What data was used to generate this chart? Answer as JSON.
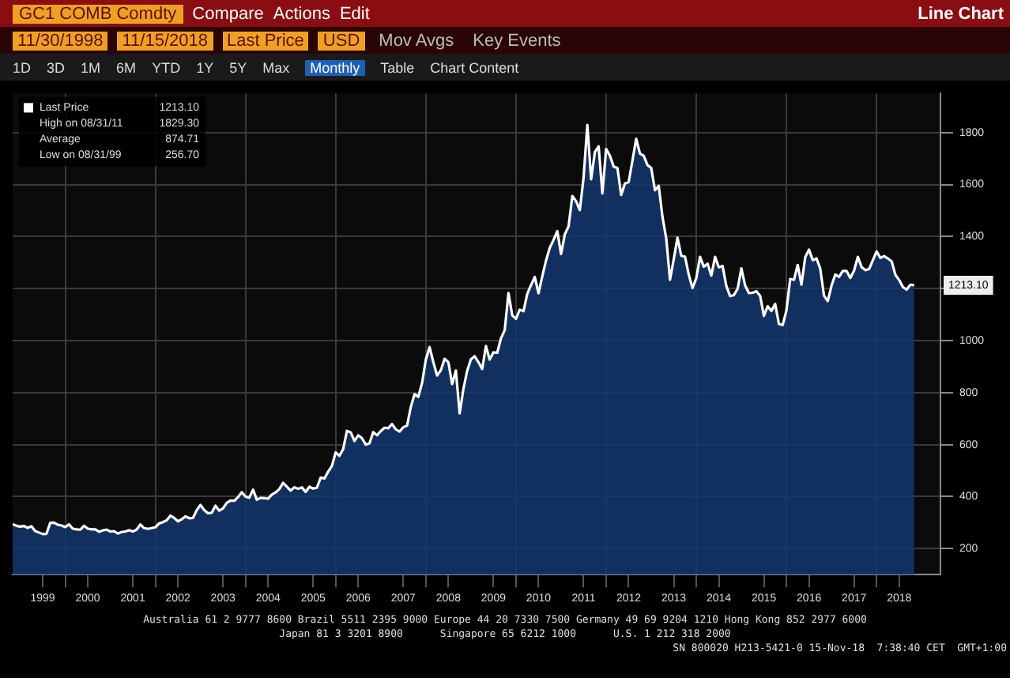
{
  "chart_data": {
    "type": "area",
    "title": "GC1 COMB Comdty",
    "subtitle": "Line Chart",
    "x": [
      "1998-11",
      "1998-12",
      "1999-01",
      "1999-02",
      "1999-03",
      "1999-04",
      "1999-05",
      "1999-06",
      "1999-07",
      "1999-08",
      "1999-09",
      "1999-10",
      "1999-11",
      "1999-12",
      "2000-01",
      "2000-02",
      "2000-03",
      "2000-04",
      "2000-05",
      "2000-06",
      "2000-07",
      "2000-08",
      "2000-09",
      "2000-10",
      "2000-11",
      "2000-12",
      "2001-01",
      "2001-02",
      "2001-03",
      "2001-04",
      "2001-05",
      "2001-06",
      "2001-07",
      "2001-08",
      "2001-09",
      "2001-10",
      "2001-11",
      "2001-12",
      "2002-01",
      "2002-02",
      "2002-03",
      "2002-04",
      "2002-05",
      "2002-06",
      "2002-07",
      "2002-08",
      "2002-09",
      "2002-10",
      "2002-11",
      "2002-12",
      "2003-01",
      "2003-02",
      "2003-03",
      "2003-04",
      "2003-05",
      "2003-06",
      "2003-07",
      "2003-08",
      "2003-09",
      "2003-10",
      "2003-11",
      "2003-12",
      "2004-01",
      "2004-02",
      "2004-03",
      "2004-04",
      "2004-05",
      "2004-06",
      "2004-07",
      "2004-08",
      "2004-09",
      "2004-10",
      "2004-11",
      "2004-12",
      "2005-01",
      "2005-02",
      "2005-03",
      "2005-04",
      "2005-05",
      "2005-06",
      "2005-07",
      "2005-08",
      "2005-09",
      "2005-10",
      "2005-11",
      "2005-12",
      "2006-01",
      "2006-02",
      "2006-03",
      "2006-04",
      "2006-05",
      "2006-06",
      "2006-07",
      "2006-08",
      "2006-09",
      "2006-10",
      "2006-11",
      "2006-12",
      "2007-01",
      "2007-02",
      "2007-03",
      "2007-04",
      "2007-05",
      "2007-06",
      "2007-07",
      "2007-08",
      "2007-09",
      "2007-10",
      "2007-11",
      "2007-12",
      "2008-01",
      "2008-02",
      "2008-03",
      "2008-04",
      "2008-05",
      "2008-06",
      "2008-07",
      "2008-08",
      "2008-09",
      "2008-10",
      "2008-11",
      "2008-12",
      "2009-01",
      "2009-02",
      "2009-03",
      "2009-04",
      "2009-05",
      "2009-06",
      "2009-07",
      "2009-08",
      "2009-09",
      "2009-10",
      "2009-11",
      "2009-12",
      "2010-01",
      "2010-02",
      "2010-03",
      "2010-04",
      "2010-05",
      "2010-06",
      "2010-07",
      "2010-08",
      "2010-09",
      "2010-10",
      "2010-11",
      "2010-12",
      "2011-01",
      "2011-02",
      "2011-03",
      "2011-04",
      "2011-05",
      "2011-06",
      "2011-07",
      "2011-08",
      "2011-09",
      "2011-10",
      "2011-11",
      "2011-12",
      "2012-01",
      "2012-02",
      "2012-03",
      "2012-04",
      "2012-05",
      "2012-06",
      "2012-07",
      "2012-08",
      "2012-09",
      "2012-10",
      "2012-11",
      "2012-12",
      "2013-01",
      "2013-02",
      "2013-03",
      "2013-04",
      "2013-05",
      "2013-06",
      "2013-07",
      "2013-08",
      "2013-09",
      "2013-10",
      "2013-11",
      "2013-12",
      "2014-01",
      "2014-02",
      "2014-03",
      "2014-04",
      "2014-05",
      "2014-06",
      "2014-07",
      "2014-08",
      "2014-09",
      "2014-10",
      "2014-11",
      "2014-12",
      "2015-01",
      "2015-02",
      "2015-03",
      "2015-04",
      "2015-05",
      "2015-06",
      "2015-07",
      "2015-08",
      "2015-09",
      "2015-10",
      "2015-11",
      "2015-12",
      "2016-01",
      "2016-02",
      "2016-03",
      "2016-04",
      "2016-05",
      "2016-06",
      "2016-07",
      "2016-08",
      "2016-09",
      "2016-10",
      "2016-11",
      "2016-12",
      "2017-01",
      "2017-02",
      "2017-03",
      "2017-04",
      "2017-05",
      "2017-06",
      "2017-07",
      "2017-08",
      "2017-09",
      "2017-10",
      "2017-11",
      "2017-12",
      "2018-01",
      "2018-02",
      "2018-03",
      "2018-04",
      "2018-05",
      "2018-06",
      "2018-07",
      "2018-08",
      "2018-09",
      "2018-10",
      "2018-11"
    ],
    "series": [
      {
        "name": "Last Price",
        "color": "#ffffff",
        "values": [
          294,
          288,
          285,
          287,
          280,
          286,
          268,
          262,
          256,
          257,
          299,
          300,
          292,
          289,
          283,
          293,
          277,
          274,
          273,
          288,
          277,
          274,
          274,
          265,
          270,
          273,
          266,
          267,
          258,
          264,
          266,
          271,
          266,
          273,
          293,
          279,
          276,
          279,
          282,
          297,
          302,
          309,
          327,
          318,
          305,
          313,
          324,
          317,
          318,
          348,
          368,
          348,
          336,
          338,
          365,
          346,
          355,
          376,
          385,
          384,
          398,
          417,
          400,
          396,
          427,
          388,
          395,
          394,
          392,
          408,
          416,
          429,
          453,
          438,
          423,
          436,
          430,
          436,
          418,
          438,
          431,
          434,
          473,
          470,
          496,
          518,
          570,
          557,
          583,
          653,
          647,
          614,
          636,
          625,
          600,
          605,
          648,
          636,
          652,
          665,
          663,
          679,
          659,
          650,
          667,
          673,
          745,
          794,
          784,
          837,
          927,
          975,
          917,
          866,
          886,
          930,
          917,
          833,
          885,
          720,
          814,
          884,
          928,
          940,
          917,
          891,
          979,
          927,
          955,
          953,
          1009,
          1040,
          1183,
          1097,
          1084,
          1119,
          1113,
          1180,
          1213,
          1245,
          1182,
          1247,
          1308,
          1357,
          1387,
          1421,
          1333,
          1409,
          1439,
          1556,
          1536,
          1502,
          1628,
          1829,
          1620,
          1725,
          1747,
          1566,
          1737,
          1711,
          1669,
          1664,
          1560,
          1604,
          1610,
          1692,
          1776,
          1719,
          1711,
          1675,
          1664,
          1578,
          1595,
          1476,
          1393,
          1234,
          1313,
          1396,
          1326,
          1323,
          1253,
          1202,
          1240,
          1322,
          1284,
          1296,
          1250,
          1322,
          1282,
          1287,
          1210,
          1171,
          1175,
          1199,
          1278,
          1212,
          1183,
          1184,
          1190,
          1172,
          1095,
          1132,
          1114,
          1141,
          1064,
          1060,
          1116,
          1237,
          1234,
          1291,
          1215,
          1321,
          1350,
          1309,
          1316,
          1277,
          1173,
          1152,
          1211,
          1254,
          1245,
          1268,
          1268,
          1241,
          1269,
          1322,
          1283,
          1271,
          1275,
          1309,
          1343,
          1318,
          1325,
          1316,
          1305,
          1253,
          1233,
          1206,
          1196,
          1215,
          1213
        ]
      }
    ],
    "xlim": [
      "1998-11",
      "2019-06"
    ],
    "xticks": [
      {
        "value": "1999-07",
        "label": "1999"
      },
      {
        "value": "2000-01",
        "label": null
      },
      {
        "value": "2000-07",
        "label": "2000"
      },
      {
        "value": "2001-07",
        "label": "2001"
      },
      {
        "value": "2002-01",
        "label": null
      },
      {
        "value": "2002-07",
        "label": "2002"
      },
      {
        "value": "2003-07",
        "label": "2003"
      },
      {
        "value": "2004-01",
        "label": null
      },
      {
        "value": "2004-07",
        "label": "2004"
      },
      {
        "value": "2005-07",
        "label": "2005"
      },
      {
        "value": "2006-01",
        "label": null
      },
      {
        "value": "2006-07",
        "label": "2006"
      },
      {
        "value": "2007-07",
        "label": "2007"
      },
      {
        "value": "2008-01",
        "label": null
      },
      {
        "value": "2008-07",
        "label": "2008"
      },
      {
        "value": "2009-07",
        "label": "2009"
      },
      {
        "value": "2010-01",
        "label": null
      },
      {
        "value": "2010-07",
        "label": "2010"
      },
      {
        "value": "2011-07",
        "label": "2011"
      },
      {
        "value": "2012-01",
        "label": null
      },
      {
        "value": "2012-07",
        "label": "2012"
      },
      {
        "value": "2013-07",
        "label": "2013"
      },
      {
        "value": "2014-01",
        "label": null
      },
      {
        "value": "2014-07",
        "label": "2014"
      },
      {
        "value": "2015-07",
        "label": "2015"
      },
      {
        "value": "2016-01",
        "label": null
      },
      {
        "value": "2016-07",
        "label": "2016"
      },
      {
        "value": "2017-07",
        "label": "2017"
      },
      {
        "value": "2018-01",
        "label": null
      },
      {
        "value": "2018-07",
        "label": "2018"
      }
    ],
    "ylim": [
      100,
      1950
    ],
    "yticks": [
      200,
      400,
      600,
      800,
      1000,
      {
        "value": 1200,
        "label": null
      },
      1400,
      1600,
      1800
    ],
    "grid": true,
    "legend": "top left",
    "annotations": [
      "Compare",
      "Actions",
      "Edit",
      "11/30/1998",
      "11/15/2018",
      "Last Price",
      "USD",
      "Mov Avgs",
      "Key Events",
      "1D",
      "3D",
      "1M",
      "6M",
      "YTD",
      "1Y",
      "5Y",
      "Max",
      "Monthly",
      "Table",
      "Chart Content",
      "1213.10",
      "High on 08/31/11",
      "1829.30",
      "Average",
      "874.71",
      "Low on 08/31/99",
      "256.70",
      "1213.10",
      "Australia 61 2 9777 8600 Brazil 5511 2395 9000 Europe 44 20 7330 7500 Germany 49 69 9204 1210 Hong Kong 852 2977 6000",
      "Japan 81 3 3201 8900      Singapore 65 6212 1000      U.S. 1 212 318 2000",
      "SN 800020 H213-5421-0 15-Nov-18  7:38:40 CET  GMT+1:00"
    ]
  }
}
